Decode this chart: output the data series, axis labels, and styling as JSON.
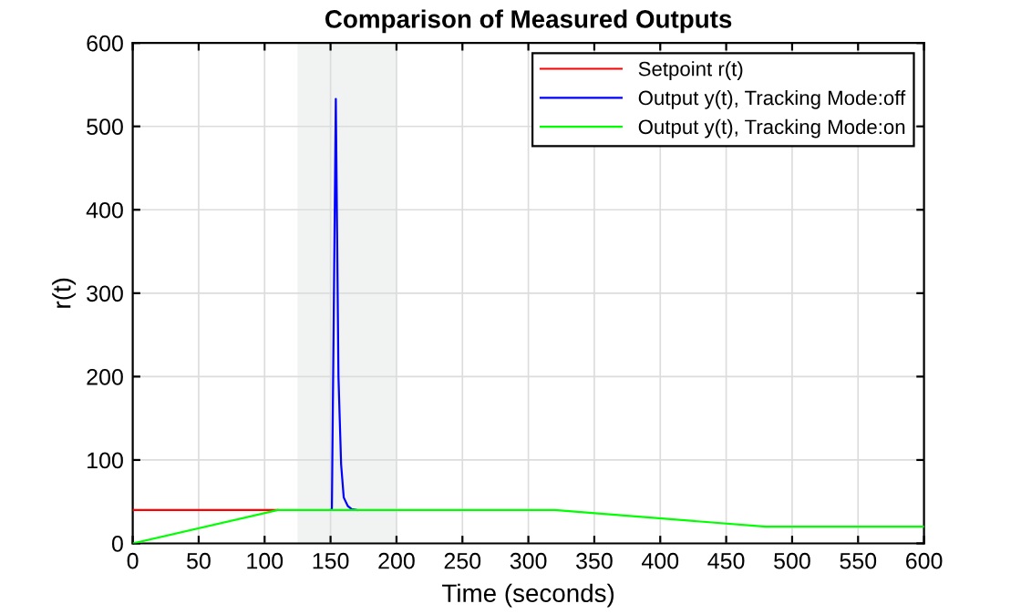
{
  "chart_data": {
    "type": "line",
    "title": "Comparison of Measured Outputs",
    "xlabel": "Time (seconds)",
    "ylabel": "r(t)",
    "xlim": [
      0,
      600
    ],
    "xticks": [
      0,
      50,
      100,
      150,
      200,
      250,
      300,
      350,
      400,
      450,
      500,
      550,
      600
    ],
    "ylim": [
      0,
      600
    ],
    "yticks": [
      0,
      100,
      200,
      300,
      400,
      500,
      600
    ],
    "grid": true,
    "legend": "top right",
    "bands": [
      {
        "axis": "x",
        "from": 125,
        "to": 200,
        "color": "#f0f3f2"
      }
    ],
    "series": [
      {
        "name": "Setpoint r(t)",
        "color": "#ff0000",
        "x": [
          0,
          110
        ],
        "values": [
          40,
          40
        ]
      },
      {
        "name": "Output y(t), Tracking Mode:off",
        "color": "#0000ff",
        "x": [
          150,
          151,
          154,
          156,
          158,
          160,
          163,
          166,
          170
        ],
        "values": [
          40,
          40,
          533,
          200,
          95,
          55,
          45,
          41,
          40
        ]
      },
      {
        "name": "Output y(t), Tracking Mode:on",
        "color": "#00ff00",
        "x": [
          0,
          110,
          320,
          480,
          600
        ],
        "values": [
          0,
          40,
          40,
          20,
          20
        ]
      }
    ]
  }
}
